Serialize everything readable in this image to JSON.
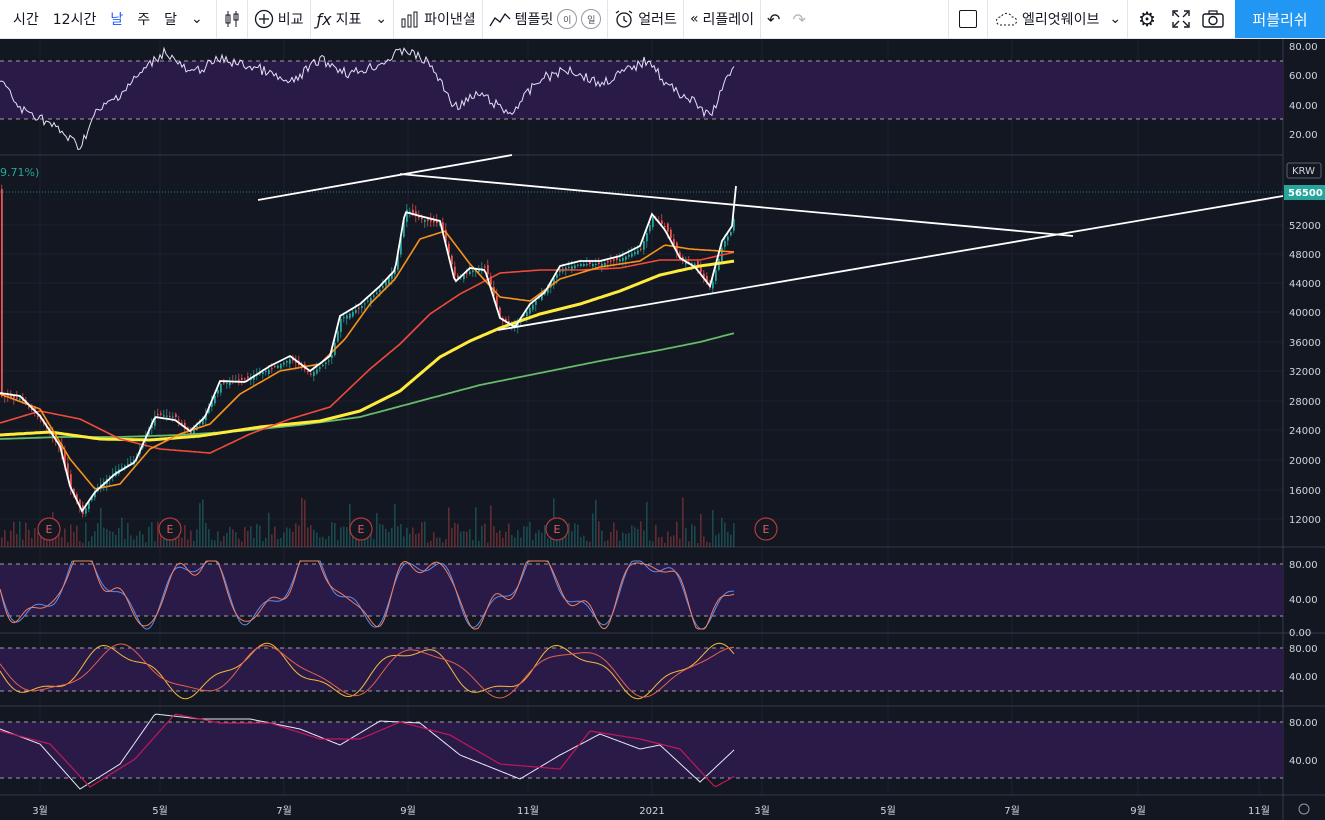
{
  "toolbar": {
    "intervals": [
      "시간",
      "12시간",
      "날",
      "주",
      "달"
    ],
    "active_interval": "날",
    "chart_type_icon": "candles-icon",
    "compare_label": "비교",
    "indicators_label": "지표",
    "financials_label": "파이낸셜",
    "templates_label": "템플릿",
    "template_badge_1": "이",
    "template_badge_2": "일",
    "alert_label": "얼러트",
    "replay_label": "리플레이",
    "layout_name": "엘리엇웨이브",
    "publish_label": "퍼블리쉬"
  },
  "price_panel": {
    "currency": "KRW",
    "current_price": "56500",
    "change_label": "9.71%)",
    "y_ticks": [
      "52000",
      "48000",
      "44000",
      "40000",
      "36000",
      "32000",
      "28000",
      "24000",
      "20000",
      "16000",
      "12000"
    ],
    "earnings_marker": "E"
  },
  "indicator_panels": {
    "rsi_ticks": [
      "80.00",
      "60.00",
      "40.00",
      "20.00"
    ],
    "stoch_ticks": [
      "80.00",
      "40.00",
      "0.00"
    ],
    "stoch2_ticks": [
      "80.00",
      "40.00"
    ],
    "macd_ticks": [
      "80.00",
      "40.00"
    ]
  },
  "x_axis": {
    "labels": [
      "3월",
      "5월",
      "7월",
      "9월",
      "11월",
      "2021",
      "3월",
      "5월",
      "7월",
      "9월",
      "11월"
    ]
  },
  "colors": {
    "background": "#131722",
    "band_fill": "#2a1a47",
    "up_candle": "#26a69a",
    "down_candle": "#ef5350",
    "ma_white": "#ffffff",
    "ma_orange": "#f7931a",
    "ma_red": "#ef4a3a",
    "ma_yellow": "#ffeb3b",
    "ma_green": "#66bb6a",
    "price_tag": "#26a69a"
  }
}
